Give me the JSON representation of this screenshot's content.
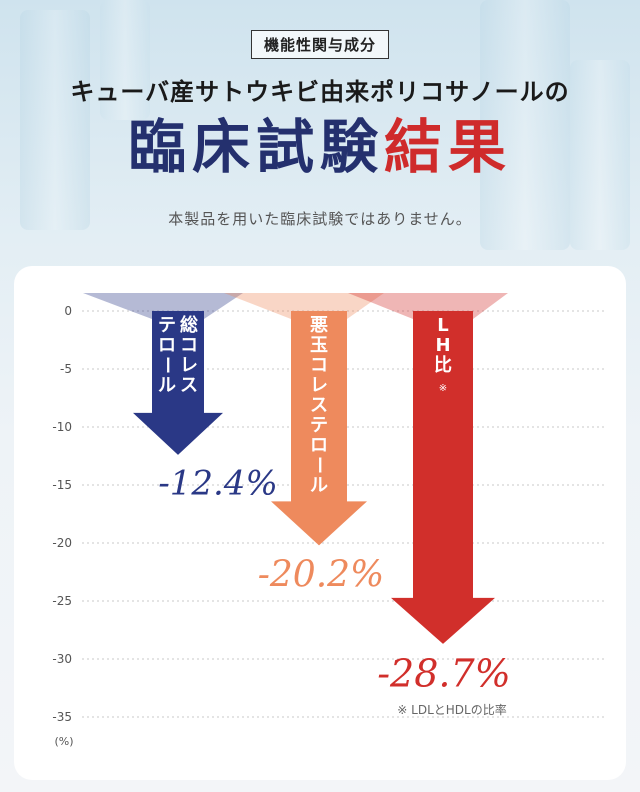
{
  "header": {
    "badge": "機能性関与成分",
    "subtitle": "キューバ産サトウキビ由来ポリコサノールの",
    "title_part1": "臨床試験",
    "title_part2": "結果",
    "disclaimer": "本製品を用いた臨床試験ではありません。"
  },
  "colors": {
    "navy": "#2a3886",
    "orange": "#ee8a5d",
    "red": "#d12f2b"
  },
  "chart_data": {
    "type": "bar",
    "ylim": [
      -35,
      0
    ],
    "yticks": [
      "0",
      "-5",
      "-10",
      "-15",
      "-20",
      "-25",
      "-30",
      "-35"
    ],
    "yunit": "(%)",
    "grid": true,
    "series": [
      {
        "label_lines": [
          "総コレス",
          "テロール"
        ],
        "value": -12.4,
        "display": "-12.4%",
        "color": "#2a3886"
      },
      {
        "label_lines": [
          "悪玉コレステロール"
        ],
        "value": -20.2,
        "display": "-20.2%",
        "color": "#ee8a5d"
      },
      {
        "label_lines": [
          "LH比"
        ],
        "label_mark": "※",
        "value": -28.7,
        "display": "-28.7%",
        "color": "#d12f2b"
      }
    ],
    "footnote": "※ LDLとHDLの比率"
  }
}
